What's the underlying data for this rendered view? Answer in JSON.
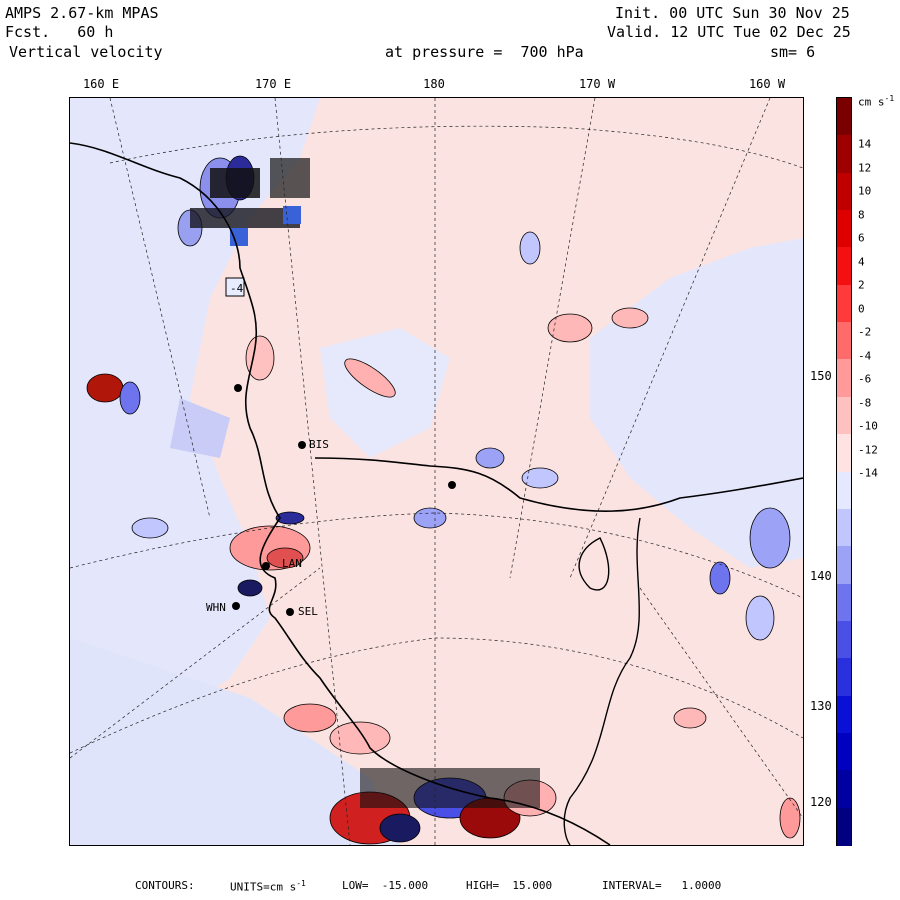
{
  "header": {
    "model": "AMPS 2.67-km MPAS",
    "fcst_label": "Fcst.",
    "fcst_value": "60 h",
    "field": "Vertical velocity",
    "init": "Init. 00 UTC Sun 30 Nov 25",
    "valid": "Valid. 12 UTC Tue 02 Dec 25",
    "pressure_text": "at pressure =  700 hPa",
    "smoothing": "sm= 6"
  },
  "longitude_labels": [
    "160 E",
    "170 E",
    "180",
    "170 W",
    "160 W"
  ],
  "latitude_labels": [
    "150 W",
    "140 W",
    "130 W",
    "120 W"
  ],
  "colorbar": {
    "units": "cm s",
    "units_exp": "-1",
    "ticks": [
      "14",
      "12",
      "10",
      "8",
      "6",
      "4",
      "2",
      "0",
      "-2",
      "-4",
      "-6",
      "-8",
      "-10",
      "-12",
      "-14"
    ],
    "colors": [
      "#7a0000",
      "#9e0000",
      "#c00000",
      "#de0000",
      "#f41010",
      "#ff3a3a",
      "#ff6a6a",
      "#ff9a9a",
      "#ffc0c0",
      "#ffe2e2",
      "#e6e8ff",
      "#c2c6ff",
      "#9ca2f6",
      "#6e74ee",
      "#4a50e6",
      "#2a30de",
      "#0a10d6",
      "#0000c0",
      "#0000a0",
      "#000080"
    ]
  },
  "stations": [
    {
      "label": "BIS"
    },
    {
      "label": "LAN"
    },
    {
      "label": "WHN"
    },
    {
      "label": "SEL"
    },
    {
      "label": "-4"
    }
  ],
  "footer": {
    "contours": "CONTOURS:",
    "units": "UNITS=cm s",
    "units_exp": "-1",
    "low": "LOW=  -15.000",
    "high": "HIGH=  15.000",
    "interval": "INTERVAL=   1.0000"
  }
}
